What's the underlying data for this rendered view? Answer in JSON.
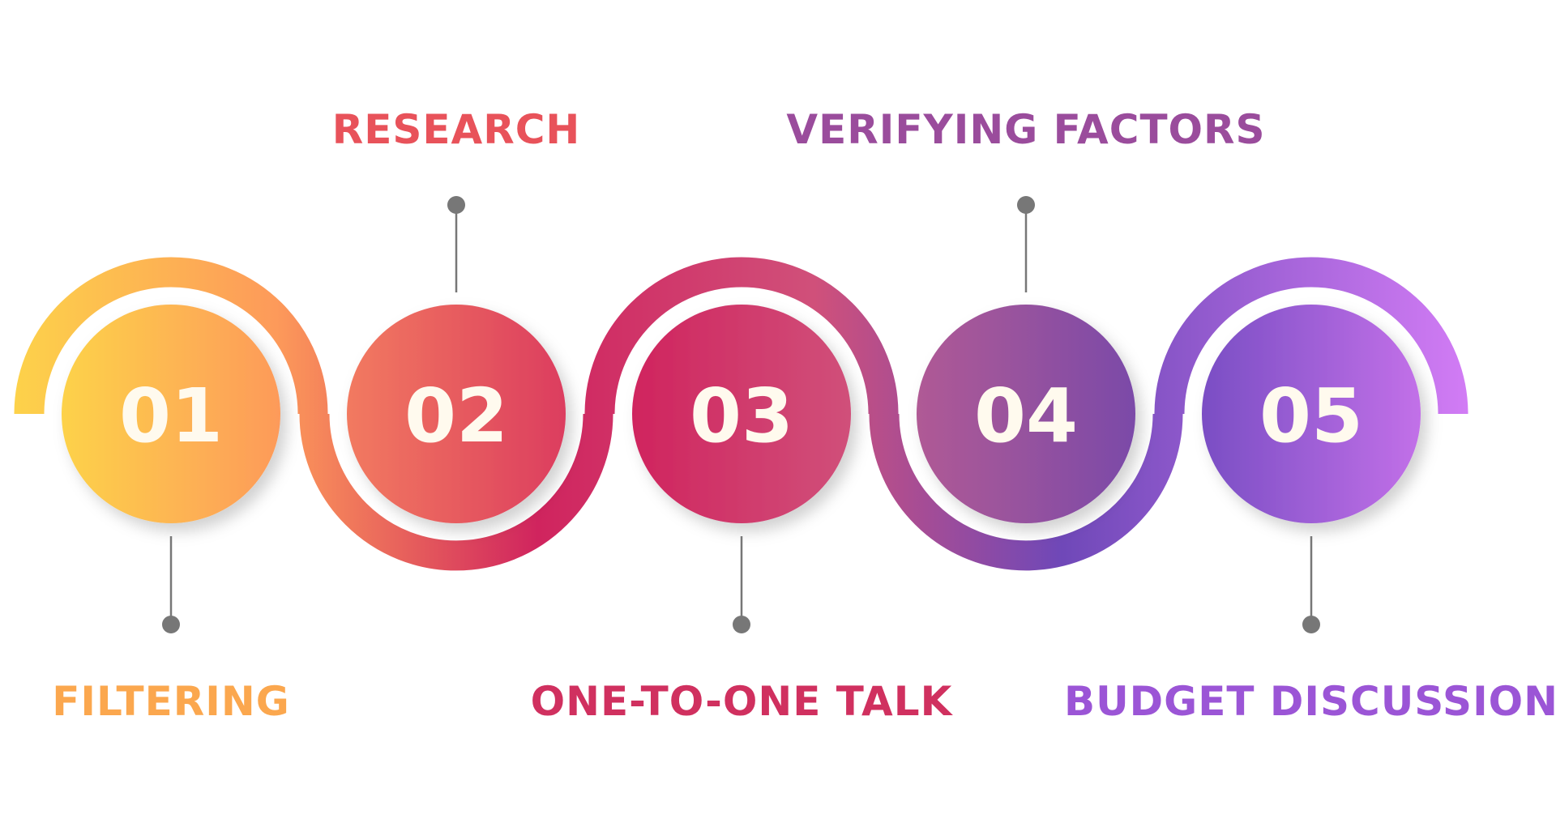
{
  "steps": [
    {
      "number": "01",
      "label": "FILTERING",
      "position": "bottom",
      "color": "#fba74e",
      "gradient": [
        "#fdd24a",
        "#fd9a5a"
      ]
    },
    {
      "number": "02",
      "label": "RESEARCH",
      "position": "top",
      "color": "#e8525a",
      "gradient": [
        "#f27a60",
        "#dc3d5e"
      ]
    },
    {
      "number": "03",
      "label": "ONE-TO-ONE TALK",
      "position": "bottom",
      "color": "#d0305f",
      "gradient": [
        "#d0245e",
        "#d0507a"
      ]
    },
    {
      "number": "04",
      "label": "VERIFYING FACTORS",
      "position": "top",
      "color": "#9a4c9c",
      "gradient": [
        "#b05a95",
        "#7b4aa8"
      ]
    },
    {
      "number": "05",
      "label": "BUDGET DISCUSSION",
      "position": "bottom",
      "color": "#9b55d6",
      "gradient": [
        "#7a4ec4",
        "#c270e8"
      ]
    }
  ],
  "connector_color": "#777777"
}
